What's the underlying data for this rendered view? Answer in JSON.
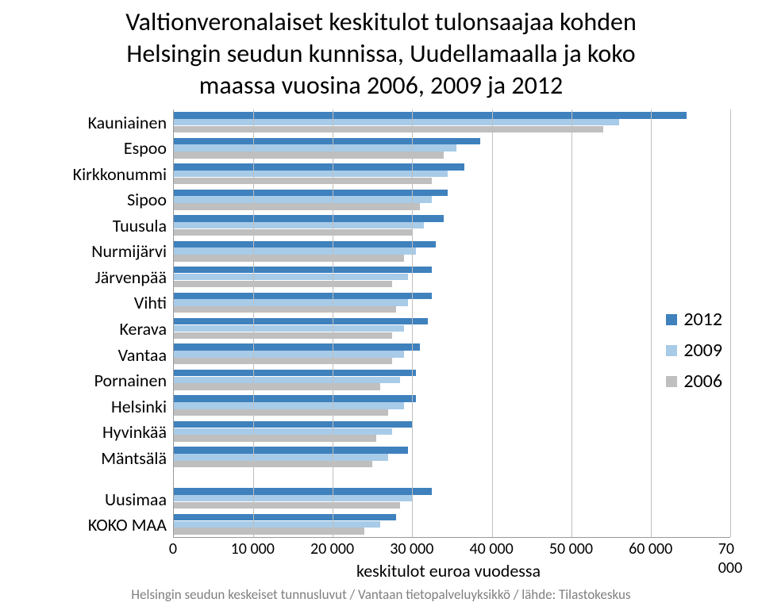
{
  "title_line1": "Valtionveronalaiset keskitulot tulonsaajaa kohden",
  "title_line2": "Helsingin seudun kunnissa, Uudellamaalla ja koko",
  "title_line3": "maassa vuosina 2006, 2009 ja 2012",
  "footer": "Helsingin seudun keskeiset tunnusluvut / Vantaan tietopalveluyksikkö / lähde: Tilastokeskus",
  "chart": {
    "type": "bar-horizontal-grouped",
    "xlabel": "keskitulot euroa vuodessa",
    "xlim": [
      0,
      70000
    ],
    "xtick_step": 10000,
    "xticks": [
      "0",
      "10 000",
      "20 000",
      "30 000",
      "40 000",
      "50 000",
      "60 000",
      "70 000"
    ],
    "grid_color": "#bfbfbf",
    "background_color": "#ffffff",
    "series": [
      {
        "key": "2012",
        "label": "2012",
        "color": "#3f81bd"
      },
      {
        "key": "2009",
        "label": "2009",
        "color": "#a8cbe8"
      },
      {
        "key": "2006",
        "label": "2006",
        "color": "#bfbfbf"
      }
    ],
    "categories": [
      {
        "label": "Kauniainen",
        "2006": 54000,
        "2009": 56000,
        "2012": 64500
      },
      {
        "label": "Espoo",
        "2006": 34000,
        "2009": 35500,
        "2012": 38500
      },
      {
        "label": "Kirkkonummi",
        "2006": 32500,
        "2009": 34500,
        "2012": 36500
      },
      {
        "label": "Sipoo",
        "2006": 31000,
        "2009": 32500,
        "2012": 34500
      },
      {
        "label": "Tuusula",
        "2006": 30000,
        "2009": 31500,
        "2012": 34000
      },
      {
        "label": "Nurmijärvi",
        "2006": 29000,
        "2009": 30500,
        "2012": 33000
      },
      {
        "label": "Järvenpää",
        "2006": 27500,
        "2009": 29500,
        "2012": 32500
      },
      {
        "label": "Vihti",
        "2006": 28000,
        "2009": 29500,
        "2012": 32500
      },
      {
        "label": "Kerava",
        "2006": 27500,
        "2009": 29000,
        "2012": 32000
      },
      {
        "label": "Vantaa",
        "2006": 27500,
        "2009": 29000,
        "2012": 31000
      },
      {
        "label": "Pornainen",
        "2006": 26000,
        "2009": 28500,
        "2012": 30500
      },
      {
        "label": "Helsinki",
        "2006": 27000,
        "2009": 29000,
        "2012": 30500
      },
      {
        "label": "Hyvinkää",
        "2006": 25500,
        "2009": 27500,
        "2012": 30000
      },
      {
        "label": "Mäntsälä",
        "2006": 25000,
        "2009": 27000,
        "2012": 29500
      },
      {
        "gap": true
      },
      {
        "label": "Uusimaa",
        "2006": 28500,
        "2009": 30000,
        "2012": 32500
      },
      {
        "label": "KOKO MAA",
        "2006": 24000,
        "2009": 26000,
        "2012": 28000
      }
    ],
    "label_fontsize": 22,
    "tick_fontsize": 20,
    "legend_fontsize": 24,
    "legend_position": "right-middle"
  }
}
